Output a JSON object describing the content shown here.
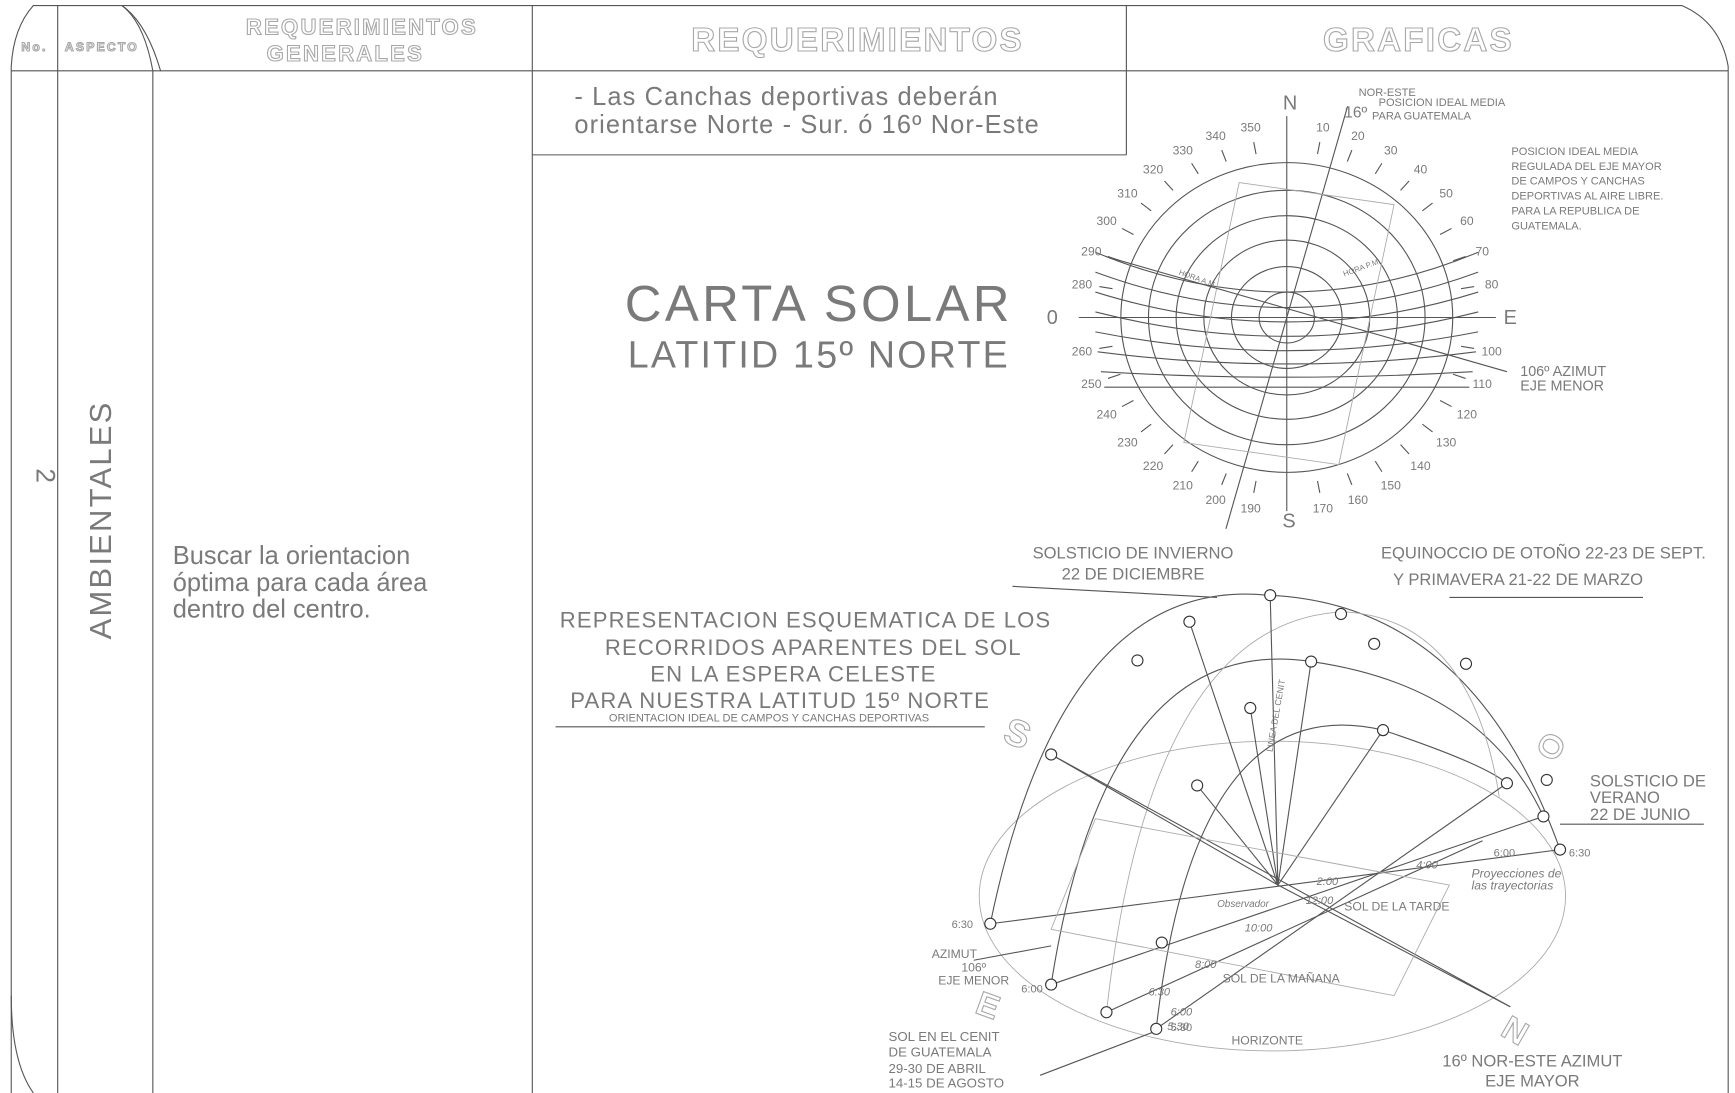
{
  "header": {
    "no": "No.",
    "aspecto": "ASPECTO",
    "requerimientos_generales": [
      "REQUERIMIENTOS",
      "GENERALES"
    ],
    "requerimientos": "REQUERIMIENTOS",
    "graficas": "GRAFICAS"
  },
  "row": {
    "number": "2",
    "aspect": "AMBIENTALES",
    "general": [
      "Buscar la orientacion",
      "óptima para cada área",
      "dentro del centro."
    ],
    "requirement": [
      "- Las Canchas deportivas deberán",
      "orientarse Norte - Sur. ó 16º Nor-Este"
    ]
  },
  "carta_solar": {
    "title": "CARTA SOLAR",
    "subtitle": "LATITID 15º NORTE",
    "cardinals": {
      "n": "N",
      "e": "E",
      "s": "S",
      "o": "0"
    },
    "degrees": [
      "10",
      "20",
      "30",
      "40",
      "50",
      "60",
      "70",
      "80",
      "100",
      "110",
      "120",
      "130",
      "140",
      "150",
      "160",
      "170",
      "190",
      "200",
      "210",
      "220",
      "230",
      "240",
      "250",
      "260",
      "280",
      "290",
      "300",
      "310",
      "320",
      "330",
      "340",
      "350"
    ],
    "note_top": [
      "NOR-ESTE",
      "16º",
      "POSICION IDEAL MEDIA",
      "PARA GUATEMALA"
    ],
    "note_right": [
      "POSICION IDEAL MEDIA",
      "REGULADA DEL EJE MAYOR",
      "DE CAMPOS Y CANCHAS",
      "DEPORTIVAS AL AIRE LIBRE.",
      "PARA LA REPUBLICA DE",
      "GUATEMALA."
    ],
    "note_azimut": [
      "106º AZIMUT",
      "EJE MENOR"
    ],
    "hora_am": "HORA A.M.",
    "hora_pm": "HORA P.M."
  },
  "esquema": {
    "title": [
      "REPRESENTACION ESQUEMATICA DE LOS",
      "RECORRIDOS APARENTES DEL SOL",
      "EN LA ESPERA CELESTE",
      "PARA NUESTRA LATITUD 15º NORTE"
    ],
    "subtitle": "ORIENTACION IDEAL DE CAMPOS Y CANCHAS DEPORTIVAS",
    "invierno": [
      "SOLSTICIO DE INVIERNO",
      "22 DE DICIEMBRE"
    ],
    "equinoccio": [
      "EQUINOCCIO DE OTOÑO 22-23 DE SEPT.",
      "Y PRIMAVERA 21-22 DE MARZO"
    ],
    "verano": [
      "SOLSTICIO DE",
      "VERANO",
      "22 DE JUNIO"
    ],
    "proyecciones": [
      "Proyecciones de",
      "las trayectorias"
    ],
    "sol_tarde": "SOL DE LA TARDE",
    "sol_manana": "SOL DE LA MAÑANA",
    "horizonte": "HORIZONTE",
    "observador": "Observador",
    "linea_cenit": "LINEA DEL CENIT",
    "azimut_menor": [
      "AZIMUT",
      "106º",
      "EJE MENOR"
    ],
    "cenit": [
      "SOL EN EL CENIT",
      "DE GUATEMALA",
      "29-30 DE ABRIL",
      "14-15 DE AGOSTO"
    ],
    "eje_mayor": [
      "16º NOR-ESTE AZIMUT",
      "EJE MAYOR"
    ],
    "letters": {
      "s": "S",
      "o": "O",
      "e": "E",
      "n": "N"
    },
    "times": [
      "6:30",
      "6:00",
      "5:30",
      "6:00",
      "6:30",
      "12:00",
      "2:00",
      "4:00",
      "10:00",
      "8:00",
      "6:30",
      "6:00",
      "5:30"
    ]
  }
}
